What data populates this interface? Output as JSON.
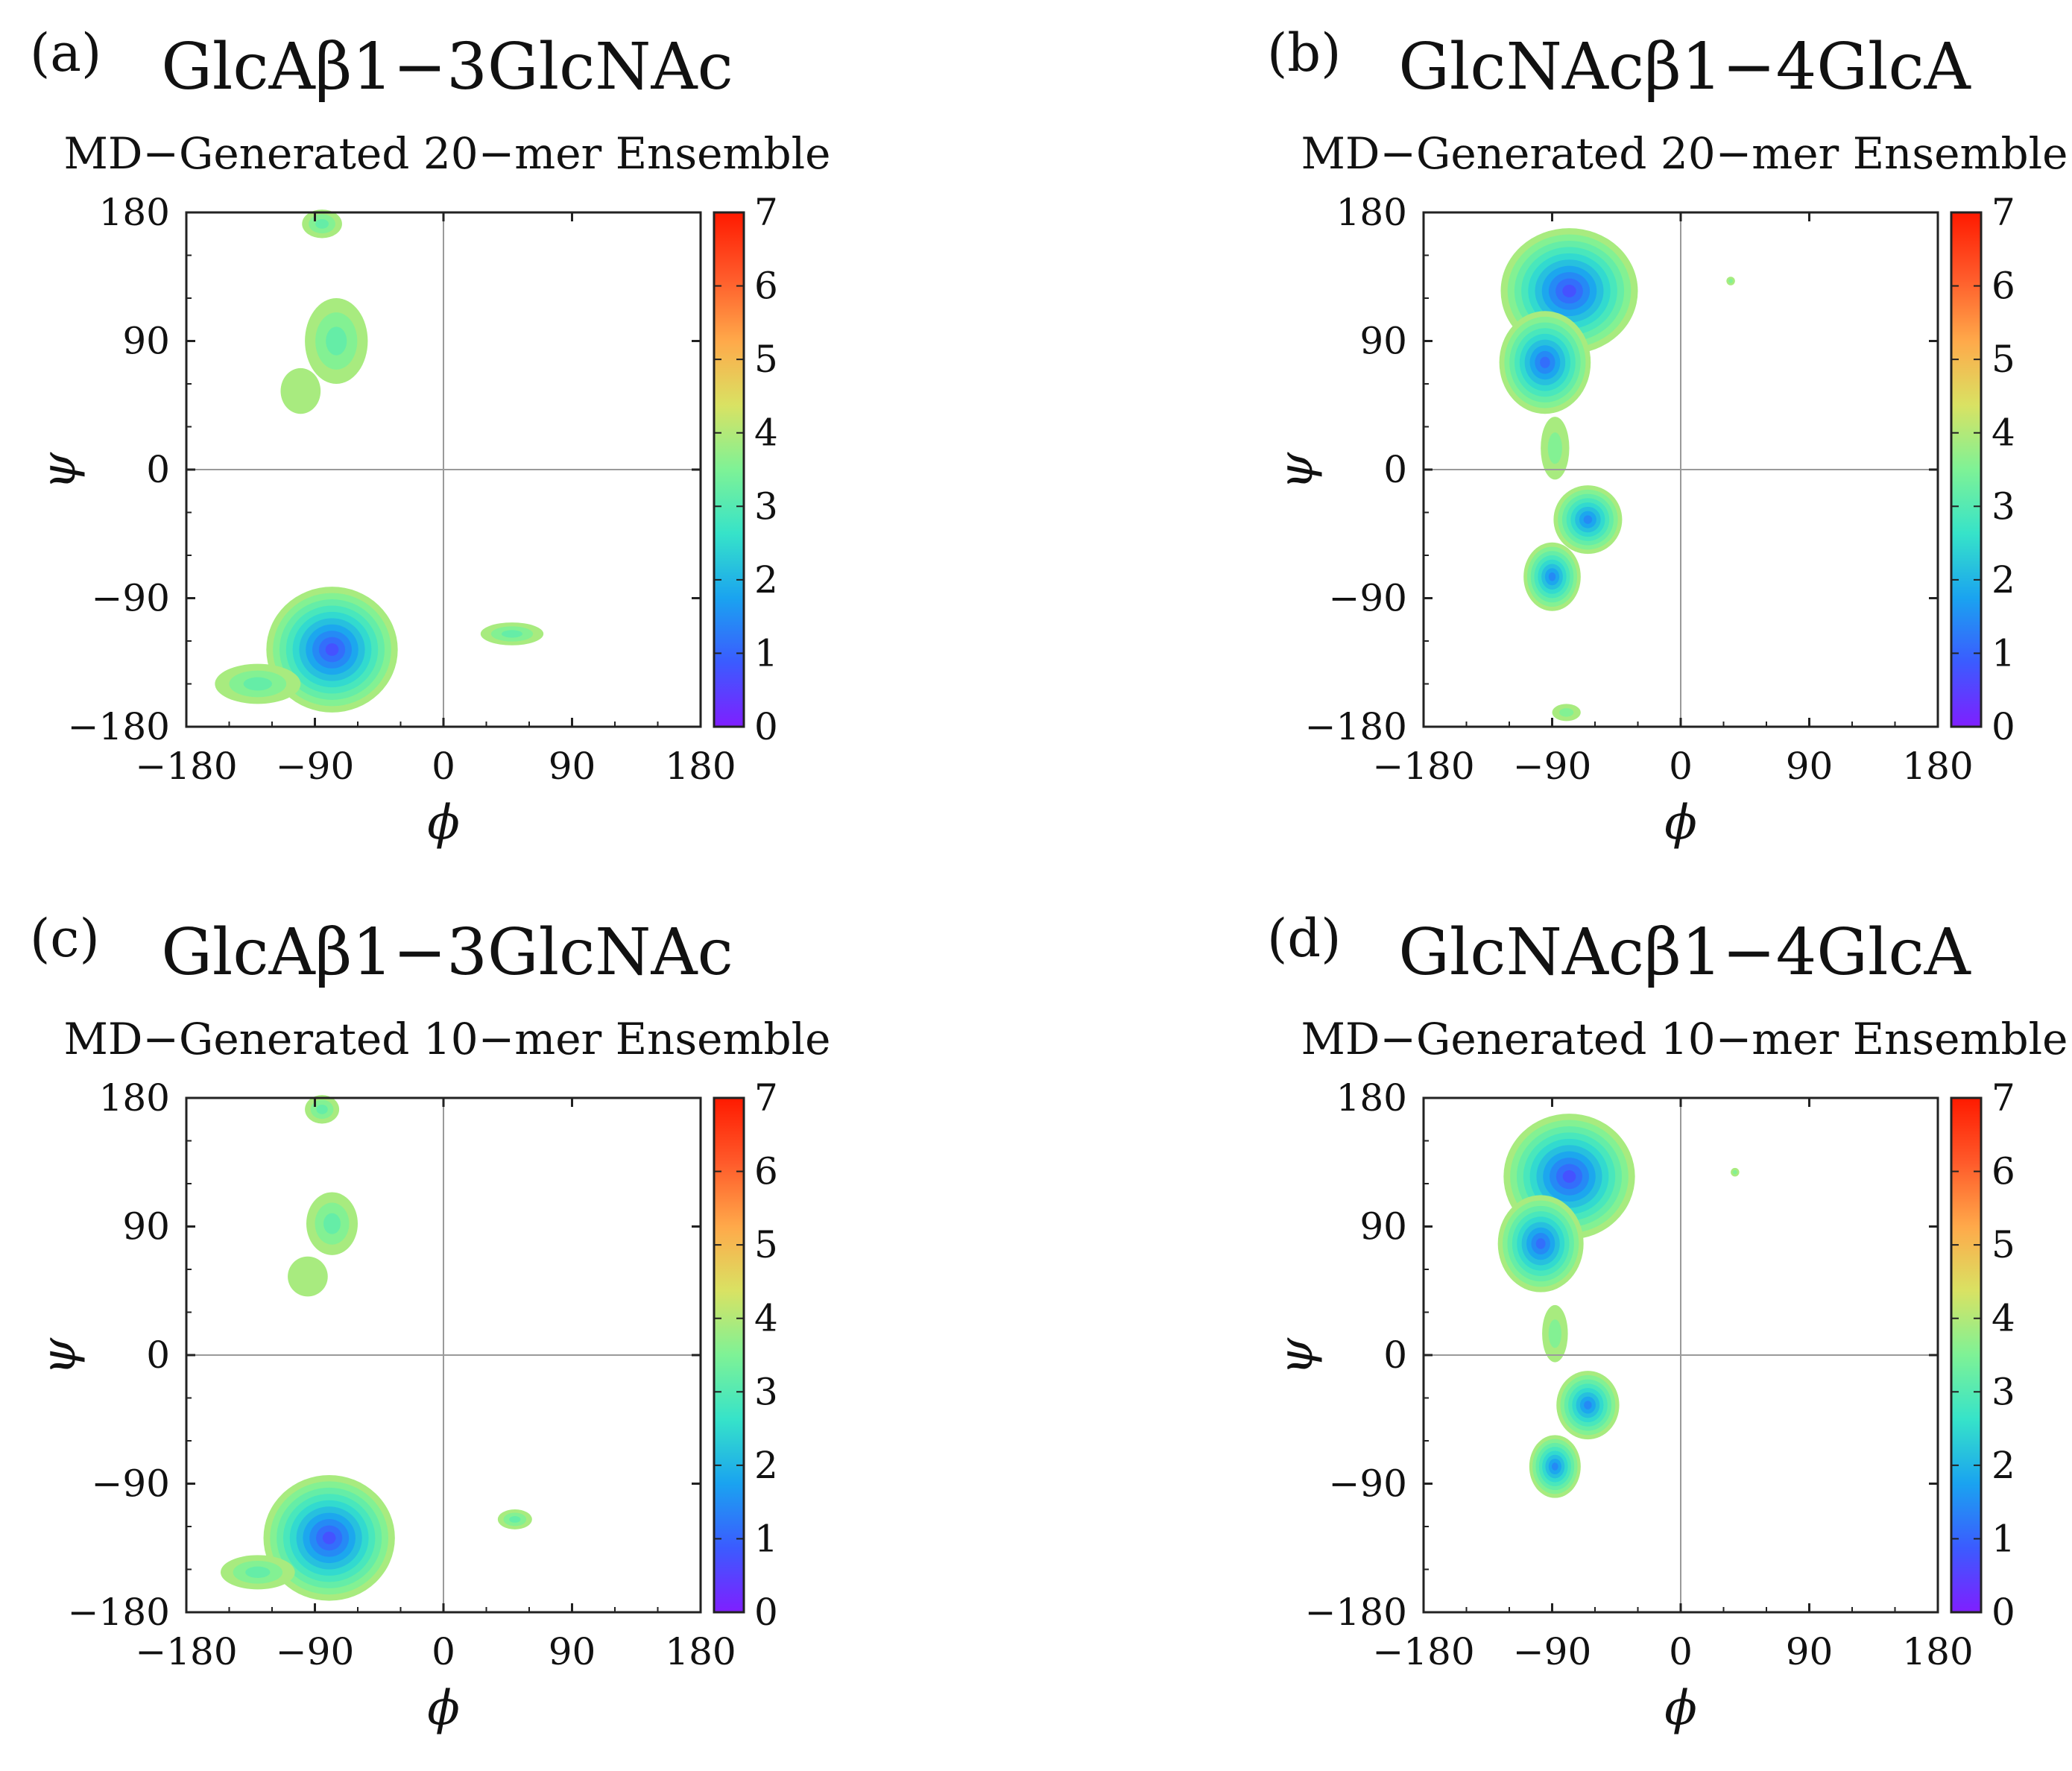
{
  "colorscale": {
    "min": 0,
    "max": 7,
    "ticks": [
      "0",
      "1",
      "2",
      "3",
      "4",
      "5",
      "6",
      "7"
    ],
    "stops": [
      "#7f1fff",
      "#3b5bff",
      "#1aa3f0",
      "#36e3c9",
      "#7ef296",
      "#d9e263",
      "#ffa94a",
      "#ff5a2a",
      "#ff1a00"
    ]
  },
  "chart_data": [
    {
      "label": "(a)",
      "type": "heatmap",
      "title": "GlcAβ1−3GlcNAc",
      "subtitle": "MD−Generated 20−mer Ensemble",
      "xlabel": "ϕ",
      "ylabel": "ψ",
      "xlim": [
        -180,
        180
      ],
      "ylim": [
        -180,
        180
      ],
      "xticks": [
        "−180",
        "−90",
        "0",
        "90",
        "180"
      ],
      "yticks": [
        "180",
        "90",
        "0",
        "−90",
        "−180"
      ],
      "colorbar": {
        "min": 0,
        "max": 7
      },
      "regions": [
        {
          "phi": -78,
          "psi": -126,
          "rx": 46,
          "ry": 44,
          "min_energy": 0.6
        },
        {
          "phi": -130,
          "psi": -150,
          "rx": 30,
          "ry": 14,
          "min_energy": 3.0
        },
        {
          "phi": -75,
          "psi": 90,
          "rx": 22,
          "ry": 30,
          "min_energy": 3.0
        },
        {
          "phi": -100,
          "psi": 55,
          "rx": 14,
          "ry": 16,
          "min_energy": 3.6
        },
        {
          "phi": -85,
          "psi": 172,
          "rx": 14,
          "ry": 10,
          "min_energy": 3.0
        },
        {
          "phi": 48,
          "psi": -115,
          "rx": 22,
          "ry": 8,
          "min_energy": 3.0
        }
      ]
    },
    {
      "label": "(b)",
      "type": "heatmap",
      "title": "GlcNAcβ1−4GlcA",
      "subtitle": "MD−Generated 20−mer Ensemble",
      "xlabel": "ϕ",
      "ylabel": "ψ",
      "xlim": [
        -180,
        180
      ],
      "ylim": [
        -180,
        180
      ],
      "xticks": [
        "−180",
        "−90",
        "0",
        "90",
        "180"
      ],
      "yticks": [
        "180",
        "90",
        "0",
        "−90",
        "−180"
      ],
      "colorbar": {
        "min": 0,
        "max": 7
      },
      "regions": [
        {
          "phi": -78,
          "psi": 125,
          "rx": 48,
          "ry": 44,
          "min_energy": 0.5
        },
        {
          "phi": -95,
          "psi": 75,
          "rx": 32,
          "ry": 36,
          "min_energy": 1.0
        },
        {
          "phi": -88,
          "psi": 15,
          "rx": 10,
          "ry": 22,
          "min_energy": 3.2
        },
        {
          "phi": -65,
          "psi": -35,
          "rx": 24,
          "ry": 24,
          "min_energy": 1.2
        },
        {
          "phi": -90,
          "psi": -75,
          "rx": 20,
          "ry": 24,
          "min_energy": 1.3
        },
        {
          "phi": -80,
          "psi": -170,
          "rx": 10,
          "ry": 6,
          "min_energy": 3.5
        },
        {
          "phi": 35,
          "psi": 132,
          "rx": 3,
          "ry": 3,
          "min_energy": 3.5
        }
      ]
    },
    {
      "label": "(c)",
      "type": "heatmap",
      "title": "GlcAβ1−3GlcNAc",
      "subtitle": "MD−Generated 10−mer Ensemble",
      "xlabel": "ϕ",
      "ylabel": "ψ",
      "xlim": [
        -180,
        180
      ],
      "ylim": [
        -180,
        180
      ],
      "xticks": [
        "−180",
        "−90",
        "0",
        "90",
        "180"
      ],
      "yticks": [
        "180",
        "90",
        "0",
        "−90",
        "−180"
      ],
      "colorbar": {
        "min": 0,
        "max": 7
      },
      "regions": [
        {
          "phi": -80,
          "psi": -128,
          "rx": 46,
          "ry": 44,
          "min_energy": 0.6
        },
        {
          "phi": -130,
          "psi": -152,
          "rx": 26,
          "ry": 12,
          "min_energy": 3.0
        },
        {
          "phi": -78,
          "psi": 92,
          "rx": 18,
          "ry": 22,
          "min_energy": 3.0
        },
        {
          "phi": -95,
          "psi": 55,
          "rx": 14,
          "ry": 14,
          "min_energy": 3.6
        },
        {
          "phi": -85,
          "psi": 172,
          "rx": 12,
          "ry": 10,
          "min_energy": 3.0
        },
        {
          "phi": 50,
          "psi": -115,
          "rx": 12,
          "ry": 7,
          "min_energy": 3.0
        }
      ]
    },
    {
      "label": "(d)",
      "type": "heatmap",
      "title": "GlcNAcβ1−4GlcA",
      "subtitle": "MD−Generated 10−mer Ensemble",
      "xlabel": "ϕ",
      "ylabel": "ψ",
      "xlim": [
        -180,
        180
      ],
      "ylim": [
        -180,
        180
      ],
      "xticks": [
        "−180",
        "−90",
        "0",
        "90",
        "180"
      ],
      "yticks": [
        "180",
        "90",
        "0",
        "−90",
        "−180"
      ],
      "colorbar": {
        "min": 0,
        "max": 7
      },
      "regions": [
        {
          "phi": -78,
          "psi": 125,
          "rx": 46,
          "ry": 44,
          "min_energy": 0.5
        },
        {
          "phi": -98,
          "psi": 78,
          "rx": 30,
          "ry": 34,
          "min_energy": 1.0
        },
        {
          "phi": -88,
          "psi": 15,
          "rx": 9,
          "ry": 20,
          "min_energy": 3.2
        },
        {
          "phi": -65,
          "psi": -35,
          "rx": 22,
          "ry": 24,
          "min_energy": 1.2
        },
        {
          "phi": -88,
          "psi": -78,
          "rx": 18,
          "ry": 22,
          "min_energy": 1.3
        },
        {
          "phi": 38,
          "psi": 128,
          "rx": 3,
          "ry": 3,
          "min_energy": 3.5
        }
      ]
    }
  ]
}
